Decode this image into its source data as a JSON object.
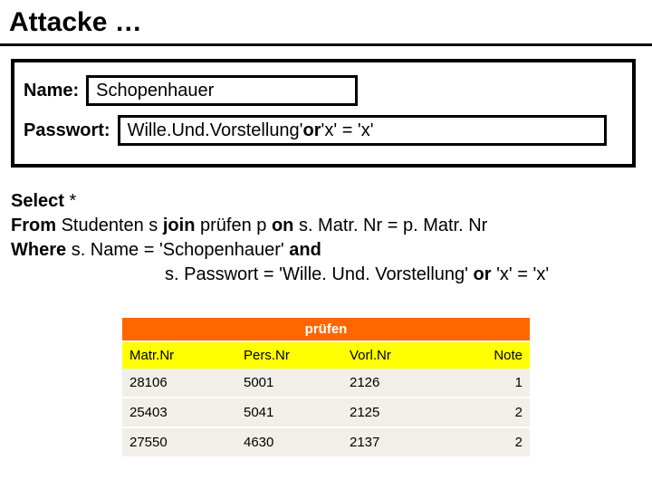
{
  "title": "Attacke …",
  "form": {
    "name_label": "Name:",
    "name_value": "Schopenhauer",
    "pass_label": "Passwort:",
    "pass_prefix": "Wille.Und.Vorstellung'",
    "pass_or": " or ",
    "pass_suffix": "'x' = 'x'"
  },
  "sql": {
    "l1_a": "Select",
    "l1_b": " *",
    "l2_a": "From ",
    "l2_b": "Studenten s ",
    "l2_c": "join ",
    "l2_d": "prüfen p ",
    "l2_e": "on ",
    "l2_f": "s. Matr. Nr = p. Matr. Nr",
    "l3_a": "Where ",
    "l3_b": "s. Name = 'Schopenhauer' ",
    "l3_c": "and",
    "l4_a": "s. Passwort = 'Wille. Und. Vorstellung' ",
    "l4_b": "or ",
    "l4_c": "'x' = 'x'"
  },
  "table": {
    "title": "prüfen",
    "columns": [
      "Matr.Nr",
      "Pers.Nr",
      "Vorl.Nr",
      "Note"
    ],
    "rows": [
      [
        "28106",
        "5001",
        "2126",
        "1"
      ],
      [
        "25403",
        "5041",
        "2125",
        "2"
      ],
      [
        "27550",
        "4630",
        "2137",
        "2"
      ]
    ],
    "colors": {
      "title_bg": "#ff6600",
      "title_fg": "#ffffff",
      "head_bg": "#ffff00",
      "row_bg": "#f2efe9"
    }
  }
}
